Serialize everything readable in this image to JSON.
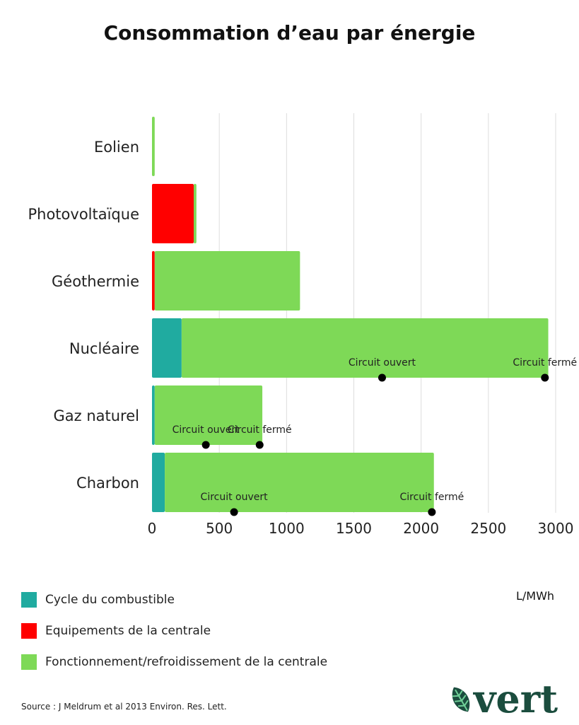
{
  "colors": {
    "fuel_cycle": "#20ABA0",
    "equipment": "#FF0000",
    "operation": "#7ED957",
    "grid": "#DDDDDD",
    "marker": "#000000",
    "logo": "#1B4D3E",
    "logo_leaf": "#6FCF97"
  },
  "chart_data": {
    "type": "bar",
    "orientation": "horizontal",
    "stacked": true,
    "title": "Consommation d’eau par énergie",
    "unit": "L/MWh",
    "xlim": [
      0,
      3000
    ],
    "xticks": [
      0,
      500,
      1000,
      1500,
      2000,
      2500,
      3000
    ],
    "grid": "vertical",
    "legend_position": "bottom-left",
    "categories": [
      "Eolien",
      "Photovoltaïque",
      "Géothermie",
      "Nucléaire",
      "Gaz naturel",
      "Charbon"
    ],
    "series": [
      {
        "name": "Cycle du combustible",
        "color_key": "fuel_cycle",
        "values": [
          0,
          0,
          0,
          220,
          20,
          95
        ]
      },
      {
        "name": "Equipements de la centrale",
        "color_key": "equipment",
        "values": [
          0,
          310,
          20,
          0,
          0,
          0
        ]
      },
      {
        "name": "Fonctionnement/refroidissement de la centrale",
        "color_key": "operation",
        "values": [
          20,
          20,
          1080,
          2725,
          800,
          2000
        ]
      }
    ],
    "annotations": [
      {
        "category": "Nucléaire",
        "x": 1710,
        "label": "Circuit ouvert"
      },
      {
        "category": "Nucléaire",
        "x": 2920,
        "label": "Circuit fermé"
      },
      {
        "category": "Gaz naturel",
        "x": 400,
        "label": "Circuit ouvert"
      },
      {
        "category": "Gaz naturel",
        "x": 800,
        "label": "Circuit fermé"
      },
      {
        "category": "Charbon",
        "x": 610,
        "label": "Circuit ouvert"
      },
      {
        "category": "Charbon",
        "x": 2080,
        "label": "Circuit fermé"
      }
    ]
  },
  "legend": {
    "items": [
      {
        "label": "Cycle du combustible",
        "color_key": "fuel_cycle"
      },
      {
        "label": "Equipements de la centrale",
        "color_key": "equipment"
      },
      {
        "label": "Fonctionnement/refroidissement de la centrale",
        "color_key": "operation"
      }
    ]
  },
  "source": "Source : J Meldrum et al 2013 Environ. Res. Lett.",
  "logo": {
    "text": "vert",
    "icon": "leaf-icon"
  }
}
